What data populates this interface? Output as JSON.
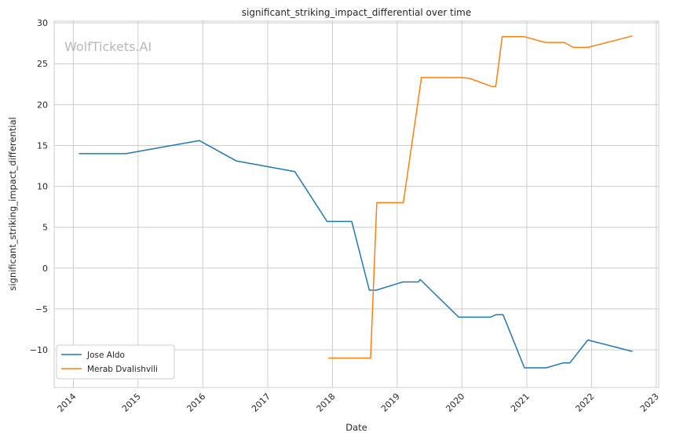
{
  "chart_data": {
    "type": "line",
    "title": "significant_striking_impact_differential over time",
    "xlabel": "Date",
    "ylabel": "significant_striking_impact_differential",
    "watermark": "WolfTickets.AI",
    "xlim": [
      "2013-09-15",
      "2023-01-15"
    ],
    "ylim": [
      -14.6,
      30.2
    ],
    "x_ticks": [
      "2014",
      "2015",
      "2016",
      "2017",
      "2018",
      "2019",
      "2020",
      "2021",
      "2022",
      "2023"
    ],
    "y_ticks": [
      -10,
      -5,
      0,
      5,
      10,
      15,
      20,
      25,
      30
    ],
    "y_tick_labels": [
      "−10",
      "−5",
      "0",
      "5",
      "10",
      "15",
      "20",
      "25",
      "30"
    ],
    "grid": true,
    "legend": "lower-left",
    "series": [
      {
        "name": "Jose Aldo",
        "color": "#1f77b4",
        "points": [
          [
            "2014-02-01",
            14.0
          ],
          [
            "2014-10-25",
            14.0
          ],
          [
            "2015-12-12",
            15.6
          ],
          [
            "2016-07-09",
            13.1
          ],
          [
            "2017-06-03",
            11.8
          ],
          [
            "2017-12-02",
            5.7
          ],
          [
            "2018-04-20",
            5.7
          ],
          [
            "2018-07-28",
            -2.7
          ],
          [
            "2018-09-05",
            -2.7
          ],
          [
            "2019-02-02",
            -1.7
          ],
          [
            "2019-05-01",
            -1.7
          ],
          [
            "2019-05-11",
            -1.4
          ],
          [
            "2019-12-14",
            -6.0
          ],
          [
            "2020-06-10",
            -6.0
          ],
          [
            "2020-07-12",
            -5.7
          ],
          [
            "2020-08-20",
            -5.7
          ],
          [
            "2020-12-19",
            -12.2
          ],
          [
            "2021-04-20",
            -12.2
          ],
          [
            "2021-07-25",
            -11.6
          ],
          [
            "2021-09-01",
            -11.6
          ],
          [
            "2021-12-11",
            -8.8
          ],
          [
            "2022-08-20",
            -10.2
          ]
        ]
      },
      {
        "name": "Merab Dvalishvili",
        "color": "#ff7f0e",
        "points": [
          [
            "2017-12-09",
            -11.0
          ],
          [
            "2018-08-04",
            -11.0
          ],
          [
            "2018-09-08",
            8.0
          ],
          [
            "2019-02-05",
            8.0
          ],
          [
            "2019-05-18",
            23.3
          ],
          [
            "2019-12-28",
            23.3
          ],
          [
            "2020-02-15",
            23.2
          ],
          [
            "2020-06-20",
            22.2
          ],
          [
            "2020-07-10",
            22.2
          ],
          [
            "2020-08-15",
            28.3
          ],
          [
            "2020-12-19",
            28.3
          ],
          [
            "2021-04-15",
            27.6
          ],
          [
            "2021-08-01",
            27.6
          ],
          [
            "2021-09-20",
            27.0
          ],
          [
            "2021-12-11",
            27.0
          ],
          [
            "2022-08-20",
            28.4
          ]
        ]
      }
    ]
  }
}
